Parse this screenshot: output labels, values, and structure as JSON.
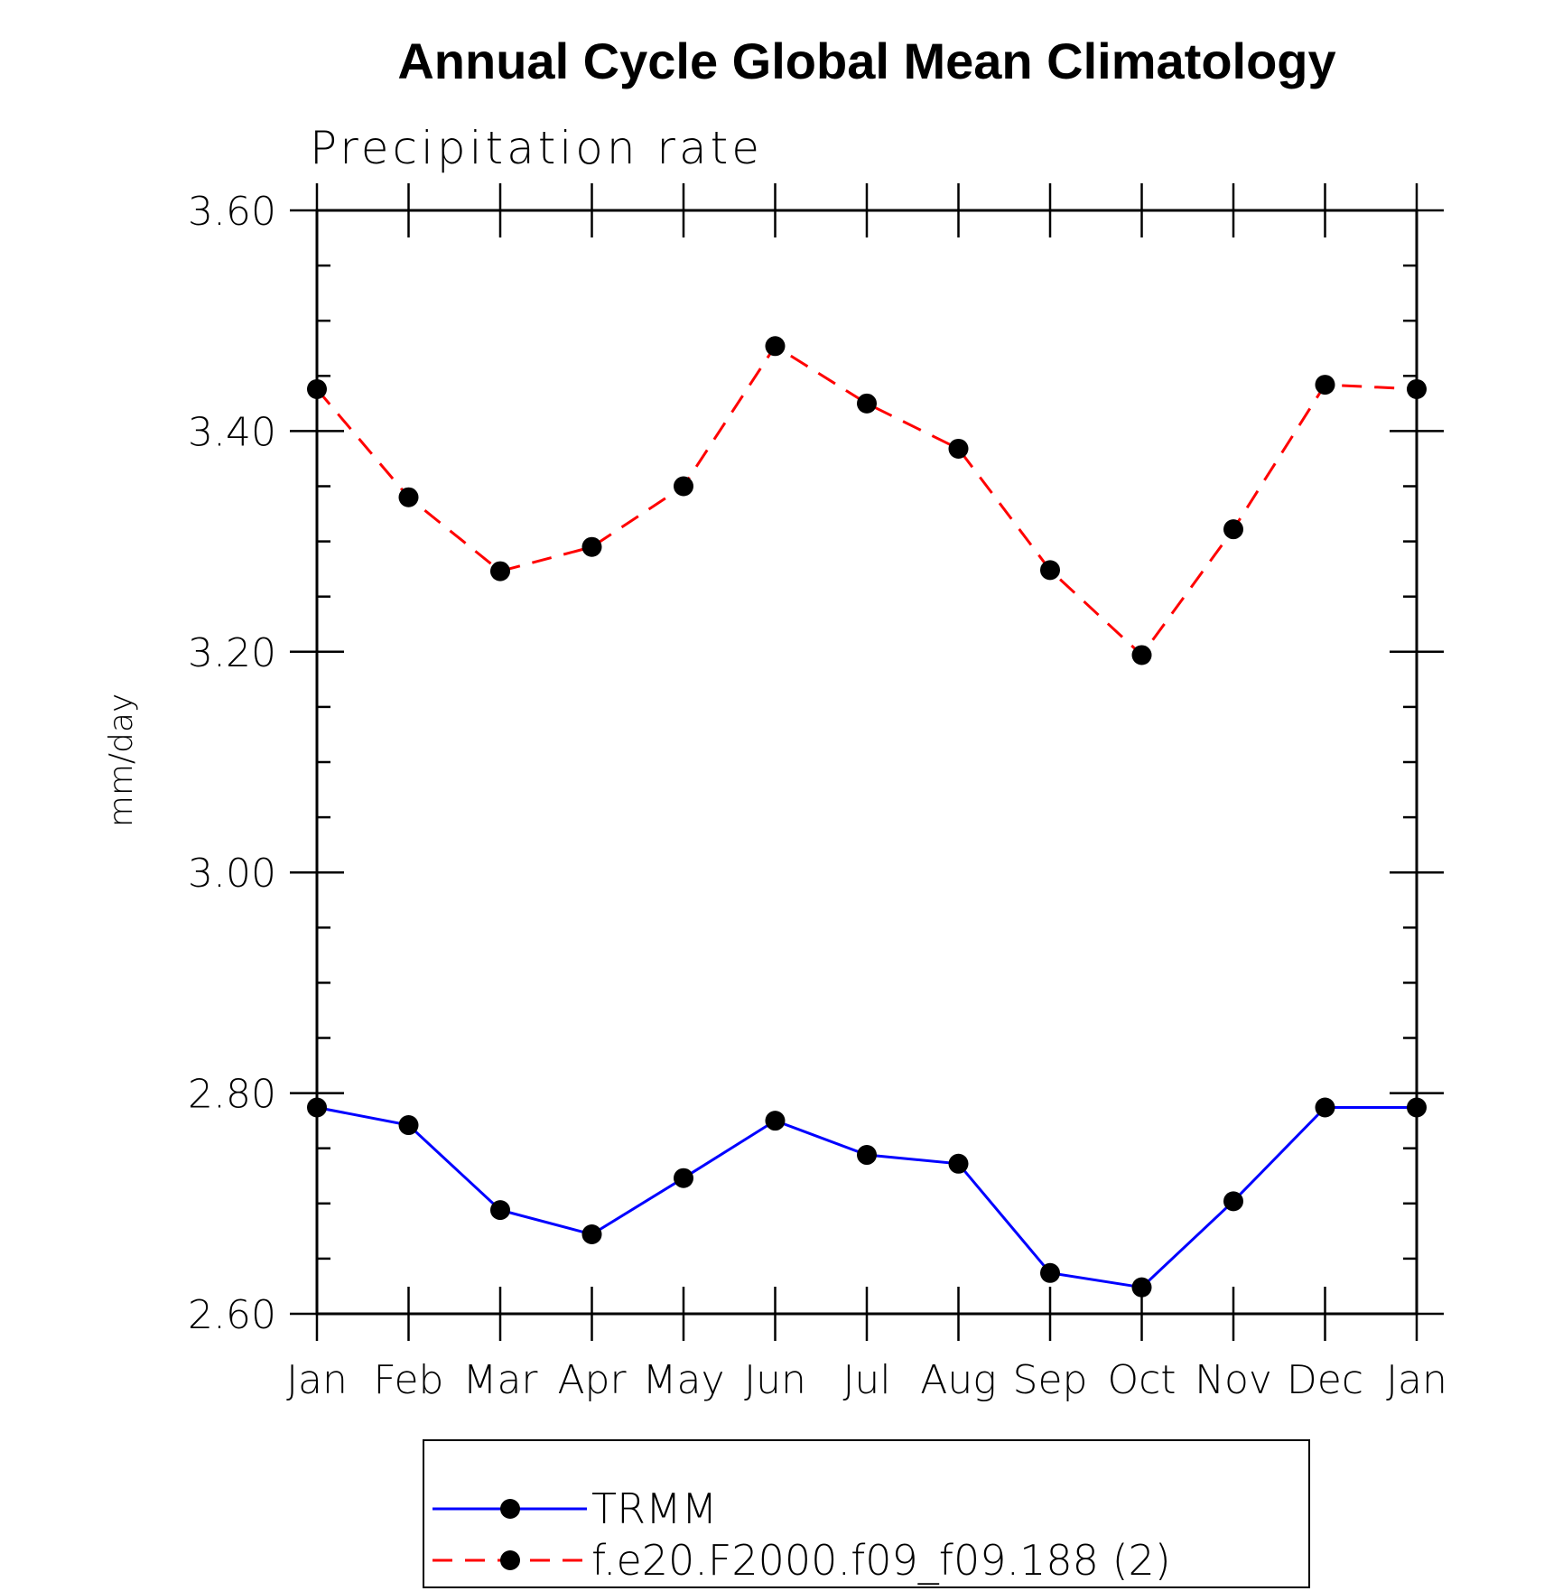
{
  "chart_data": {
    "type": "line",
    "title": "Annual Cycle Global Mean Climatology",
    "subtitle": "Precipitation rate",
    "ylabel": "mm/day",
    "xlabel": "",
    "categories": [
      "Jan",
      "Feb",
      "Mar",
      "Apr",
      "May",
      "Jun",
      "Jul",
      "Aug",
      "Sep",
      "Oct",
      "Nov",
      "Dec",
      "Jan"
    ],
    "ylim": [
      2.6,
      3.6
    ],
    "yticks": [
      "2.60",
      "2.80",
      "3.00",
      "3.20",
      "3.40",
      "3.60"
    ],
    "series": [
      {
        "name": "TRMM",
        "color": "#0000ff",
        "line_style": "solid",
        "marker": "circle",
        "values": [
          2.787,
          2.771,
          2.694,
          2.672,
          2.723,
          2.775,
          2.744,
          2.736,
          2.637,
          2.624,
          2.702,
          2.787,
          2.787
        ]
      },
      {
        "name": "f.e20.F2000.f09_f09.188 (2)",
        "color": "#ff0000",
        "line_style": "dashed",
        "marker": "circle",
        "values": [
          3.438,
          3.34,
          3.273,
          3.295,
          3.35,
          3.477,
          3.425,
          3.384,
          3.274,
          3.197,
          3.311,
          3.442,
          3.438
        ]
      }
    ],
    "legend_position": "bottom",
    "grid": false
  }
}
